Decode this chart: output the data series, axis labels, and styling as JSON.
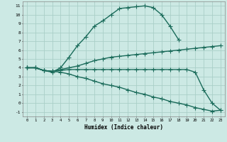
{
  "xlabel": "Humidex (Indice chaleur)",
  "ylabel": "",
  "xlim": [
    -0.5,
    23.5
  ],
  "ylim": [
    -1.5,
    11.5
  ],
  "xticks": [
    0,
    1,
    2,
    3,
    4,
    5,
    6,
    7,
    8,
    9,
    10,
    11,
    12,
    13,
    14,
    15,
    16,
    17,
    18,
    19,
    20,
    21,
    22,
    23
  ],
  "yticks": [
    -1,
    0,
    1,
    2,
    3,
    4,
    5,
    6,
    7,
    8,
    9,
    10,
    11
  ],
  "bg_color": "#cce9e4",
  "grid_color": "#aacfc8",
  "line_color": "#1a6b5a",
  "line_width": 1.0,
  "marker": "+",
  "marker_size": 4,
  "series": [
    {
      "x": [
        0,
        1,
        2,
        3,
        4,
        5,
        6,
        7,
        8,
        9,
        10,
        11,
        12,
        13,
        14,
        15,
        16,
        17,
        18
      ],
      "y": [
        4,
        4,
        3.7,
        3.5,
        4.0,
        5.2,
        6.5,
        7.5,
        8.7,
        9.3,
        10.0,
        10.7,
        10.8,
        10.9,
        11.0,
        10.8,
        10.0,
        8.7,
        7.2
      ]
    },
    {
      "x": [
        0,
        1,
        2,
        3,
        4,
        5,
        6,
        7,
        8,
        9,
        10,
        11,
        12,
        13,
        14,
        15,
        16,
        17,
        18,
        19,
        20,
        21,
        22,
        23
      ],
      "y": [
        4,
        4,
        3.7,
        3.6,
        3.8,
        4.0,
        4.2,
        4.5,
        4.8,
        5.0,
        5.2,
        5.3,
        5.4,
        5.5,
        5.6,
        5.7,
        5.8,
        5.9,
        6.0,
        6.1,
        6.2,
        6.3,
        6.4,
        6.5
      ]
    },
    {
      "x": [
        0,
        1,
        2,
        3,
        4,
        5,
        6,
        7,
        8,
        9,
        10,
        11,
        12,
        13,
        14,
        15,
        16,
        17,
        18,
        19,
        20,
        21,
        22,
        23
      ],
      "y": [
        4,
        4,
        3.7,
        3.6,
        3.7,
        3.8,
        3.8,
        3.8,
        3.8,
        3.8,
        3.8,
        3.8,
        3.8,
        3.8,
        3.8,
        3.8,
        3.8,
        3.8,
        3.8,
        3.8,
        3.5,
        1.5,
        0.0,
        -0.8
      ]
    },
    {
      "x": [
        0,
        1,
        2,
        3,
        4,
        5,
        6,
        7,
        8,
        9,
        10,
        11,
        12,
        13,
        14,
        15,
        16,
        17,
        18,
        19,
        20,
        21,
        22,
        23
      ],
      "y": [
        4,
        4,
        3.7,
        3.6,
        3.5,
        3.3,
        3.0,
        2.8,
        2.5,
        2.2,
        2.0,
        1.8,
        1.5,
        1.2,
        1.0,
        0.7,
        0.5,
        0.2,
        0.0,
        -0.2,
        -0.5,
        -0.7,
        -0.9,
        -0.8
      ]
    }
  ]
}
